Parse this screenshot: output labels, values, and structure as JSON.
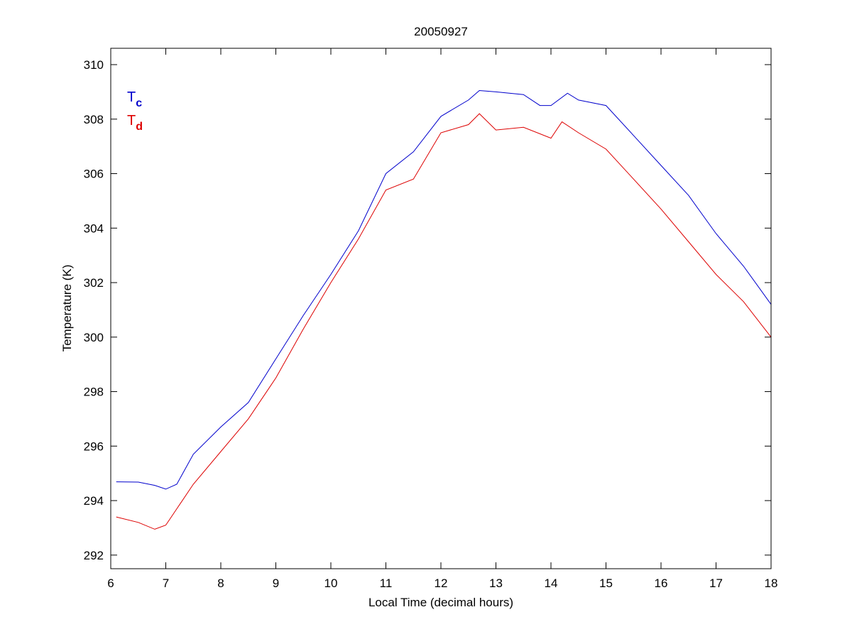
{
  "chart_data": {
    "type": "line",
    "title": "20050927",
    "xlabel": "Local Time (decimal hours)",
    "ylabel": "Temperature (K)",
    "xlim": [
      6,
      18
    ],
    "ylim": [
      291.5,
      310.6
    ],
    "xticks": [
      6,
      7,
      8,
      9,
      10,
      11,
      12,
      13,
      14,
      15,
      16,
      17,
      18
    ],
    "yticks": [
      292,
      294,
      296,
      298,
      300,
      302,
      304,
      306,
      308,
      310
    ],
    "grid": false,
    "legend": {
      "placement": "top-left",
      "entries": [
        {
          "base": "T",
          "sub": "c",
          "color": "#0000cc"
        },
        {
          "base": "T",
          "sub": "d",
          "color": "#dd0000"
        }
      ]
    },
    "series": [
      {
        "name": "Tc",
        "color": "#0000cc",
        "x": [
          6.1,
          6.5,
          6.8,
          7.0,
          7.2,
          7.5,
          8.0,
          8.5,
          9.0,
          9.5,
          10.0,
          10.5,
          11.0,
          11.5,
          12.0,
          12.5,
          12.7,
          13.0,
          13.5,
          13.8,
          14.0,
          14.3,
          14.5,
          15.0,
          15.5,
          16.0,
          16.5,
          17.0,
          17.5,
          18.0
        ],
        "y": [
          294.69,
          294.68,
          294.56,
          294.42,
          294.6,
          295.7,
          296.7,
          297.6,
          299.2,
          300.8,
          302.3,
          303.9,
          306.0,
          306.8,
          308.1,
          308.7,
          309.05,
          309.0,
          308.9,
          308.5,
          308.5,
          308.95,
          308.7,
          308.5,
          307.4,
          306.3,
          305.2,
          303.8,
          302.6,
          301.2
        ]
      },
      {
        "name": "Td",
        "color": "#dd0000",
        "x": [
          6.1,
          6.5,
          6.8,
          7.0,
          7.2,
          7.5,
          8.0,
          8.5,
          9.0,
          9.5,
          10.0,
          10.5,
          11.0,
          11.5,
          12.0,
          12.5,
          12.7,
          13.0,
          13.5,
          14.0,
          14.2,
          14.5,
          15.0,
          15.5,
          16.0,
          16.5,
          17.0,
          17.5,
          18.0
        ],
        "y": [
          293.4,
          293.2,
          292.95,
          293.1,
          293.7,
          294.6,
          295.8,
          297.0,
          298.5,
          300.3,
          302.0,
          303.6,
          305.4,
          305.8,
          307.5,
          307.8,
          308.2,
          307.6,
          307.7,
          307.3,
          307.9,
          307.5,
          306.9,
          305.8,
          304.7,
          303.5,
          302.3,
          301.3,
          300.0
        ]
      }
    ]
  }
}
